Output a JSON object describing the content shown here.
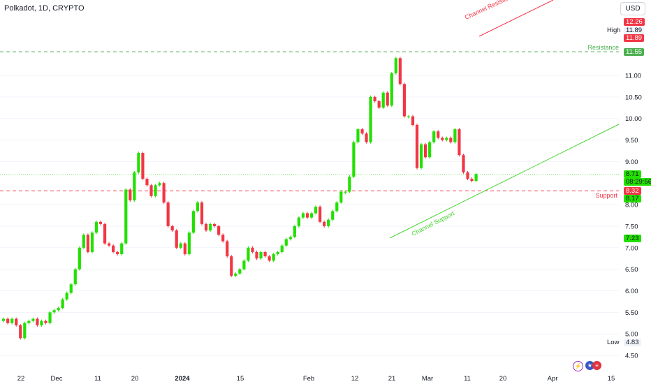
{
  "header": {
    "title": "Polkadot, 1D, CRYPTO",
    "currency_label": "USD"
  },
  "price_scale": {
    "ticks": [
      "11.00",
      "10.50",
      "10.00",
      "9.50",
      "9.00",
      "8.00",
      "7.50",
      "7.00",
      "6.50",
      "6.00",
      "5.50",
      "5.00",
      "4.50"
    ],
    "high_label": "High",
    "high_value": "11.89",
    "low_label": "Low",
    "low_value": "4.83",
    "tags": {
      "top_red": "12.26",
      "high_red": "11.89",
      "resistance": "11.55",
      "last_price": "8.71",
      "countdown": "08:29:56",
      "support": "8.32",
      "level_817": "8.17",
      "level_723": "7.23"
    }
  },
  "annotations": {
    "resistance_label": "Resistance",
    "support_label": "Support",
    "channel_resistance": "Channel Resistance",
    "channel_support": "Channel Support"
  },
  "colors": {
    "up": "#22e000",
    "down": "#f23645",
    "resistance_line": "#4caf50",
    "support_line": "#f23645",
    "channel_support": "#4cd137",
    "channel_resistance": "#f23645",
    "grid": "#f0f3fa"
  },
  "chart_data": {
    "type": "candlestick",
    "title": "Polkadot, 1D, CRYPTO",
    "ylim": [
      4.35,
      12.8
    ],
    "x_tick_labels": [
      "22",
      "Dec",
      "11",
      "20",
      "2024",
      "15",
      "Feb",
      "12",
      "21",
      "Mar",
      "11",
      "20",
      "Apr",
      "15"
    ],
    "horizontal_levels": [
      {
        "name": "Resistance",
        "value": 11.55
      },
      {
        "name": "Support",
        "value": 8.32
      }
    ],
    "candles_close": [
      5.35,
      5.25,
      5.35,
      5.2,
      4.9,
      5.25,
      5.3,
      5.35,
      5.2,
      5.3,
      5.25,
      5.5,
      5.55,
      5.6,
      5.8,
      5.95,
      6.15,
      6.5,
      7.0,
      7.3,
      6.9,
      7.35,
      7.6,
      7.55,
      7.1,
      7.05,
      6.9,
      6.85,
      7.1,
      8.35,
      8.1,
      8.75,
      9.2,
      8.6,
      8.45,
      8.2,
      8.45,
      8.5,
      8.05,
      7.5,
      7.4,
      7.0,
      7.1,
      6.85,
      7.35,
      7.85,
      8.05,
      7.55,
      7.4,
      7.55,
      7.5,
      7.3,
      7.15,
      6.8,
      6.35,
      6.4,
      6.5,
      6.7,
      7.0,
      6.9,
      6.75,
      6.9,
      6.8,
      6.7,
      6.85,
      6.9,
      7.05,
      7.2,
      7.25,
      7.5,
      7.7,
      7.8,
      7.7,
      7.8,
      7.95,
      7.6,
      7.5,
      7.65,
      7.85,
      8.05,
      8.3,
      8.3,
      8.65,
      9.45,
      9.75,
      9.65,
      9.45,
      10.5,
      10.4,
      10.25,
      10.6,
      10.3,
      11.05,
      11.4,
      10.8,
      10.05,
      10.05,
      9.85,
      8.85,
      9.4,
      9.1,
      9.45,
      9.7,
      9.55,
      9.5,
      9.55,
      9.45,
      9.75,
      9.15,
      8.75,
      8.6,
      8.55,
      8.71
    ]
  }
}
